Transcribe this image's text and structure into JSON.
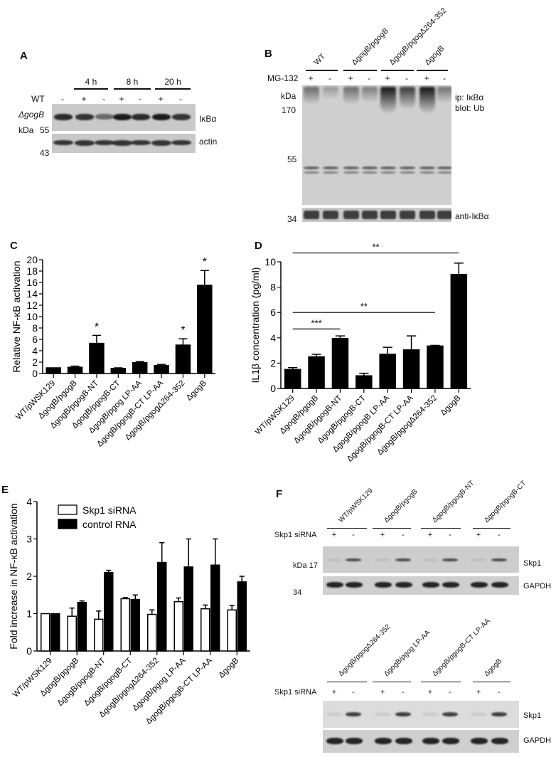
{
  "panels": {
    "A": {
      "letter": "A",
      "time_groups": [
        "4 h",
        "8 h",
        "20 h"
      ],
      "row_labels": {
        "wt": "WT",
        "gogb": "ΔgogB"
      },
      "wt_signs": [
        "-",
        "+",
        "-",
        "+",
        "-",
        "+",
        "-"
      ],
      "gogb_signs": [
        "-",
        "-",
        "+",
        "-",
        "+",
        "-",
        "+"
      ],
      "kda_label": "kDa",
      "markers": [
        "55",
        "43"
      ],
      "blot_labels": [
        "IκBα",
        "actin"
      ]
    },
    "B": {
      "letter": "B",
      "groups": [
        "WT",
        "ΔgogB/pgogB",
        "ΔgogB/pgogΔ264-352",
        "ΔgogB"
      ],
      "treatment_label": "MG-132",
      "signs": [
        "+",
        "-",
        "+",
        "-",
        "+",
        "-",
        "+",
        "-"
      ],
      "kda_label": "kDa",
      "markers": [
        "170",
        "55",
        "34"
      ],
      "blot_labels": [
        "ip: IκBα",
        "blot: Ub",
        "anti-IκBα"
      ]
    },
    "C": {
      "letter": "C"
    },
    "D": {
      "letter": "D"
    },
    "E": {
      "letter": "E"
    },
    "F": {
      "letter": "F",
      "top_groups": [
        "WT/pWSK129",
        "ΔgogB/pgogB",
        "ΔgogB/pgogB-NT",
        "ΔgogB/pgogB-CT"
      ],
      "bottom_groups": [
        "ΔgogB/pgogΔ264-352",
        "ΔgogB/pgog LP-AA",
        "ΔgogB/pgogB-CT LP-AA",
        "ΔgogB"
      ],
      "treatment_label": "Skp1 siRNA",
      "signs": [
        "+",
        "-",
        "+",
        "-",
        "+",
        "-",
        "+",
        "-"
      ],
      "kda_label": "kDa 17",
      "marker": "34",
      "blot_labels": [
        "Skp1",
        "GAPDH"
      ]
    }
  },
  "chart_data": [
    {
      "id": "C",
      "type": "bar",
      "title": "",
      "xlabel": "",
      "ylabel": "Relative NF-κB activation",
      "ylim": [
        0,
        20
      ],
      "yticks": [
        0,
        2,
        4,
        6,
        8,
        10,
        12,
        14,
        16,
        18,
        20
      ],
      "categories": [
        "WT/pWSK129",
        "ΔgogB/pgogB",
        "ΔgogB/pgogB-NT",
        "ΔgogB/pgogB-CT",
        "ΔgogB/pgog LP-AA",
        "ΔgogB/pgogB-CT LP-AA",
        "ΔgogB/pgogΔ264-352",
        "ΔgogB"
      ],
      "values": [
        1.0,
        1.1,
        5.3,
        0.9,
        1.9,
        1.4,
        5.0,
        15.5
      ],
      "errors": [
        0.0,
        0.2,
        1.4,
        0.1,
        0.2,
        0.2,
        1.1,
        2.6
      ],
      "annotations": [
        "",
        "",
        "*",
        "",
        "",
        "",
        "*",
        "*"
      ],
      "grid": false
    },
    {
      "id": "D",
      "type": "bar",
      "title": "",
      "xlabel": "",
      "ylabel": "IL1β concentration (pg/ml)",
      "ylim": [
        0,
        10
      ],
      "yticks": [
        0,
        2,
        4,
        6,
        8,
        10
      ],
      "categories": [
        "WT/pWSK129",
        "ΔgogB/pgogB",
        "ΔgogB/pgogB-NT",
        "ΔgogB/pgogB-CT",
        "ΔgogB/pgogB LP-AA",
        "ΔgogB/pgogB-CT LP-AA",
        "ΔgogB/pgogΔ264-352",
        "ΔgogB"
      ],
      "values": [
        1.5,
        2.5,
        3.95,
        1.0,
        2.7,
        3.05,
        3.35,
        9.0
      ],
      "errors": [
        0.15,
        0.2,
        0.2,
        0.2,
        0.55,
        1.1,
        0.05,
        0.9
      ],
      "significance": [
        {
          "from": 0,
          "to": 7,
          "label": "**",
          "y": 10.7
        },
        {
          "from": 0,
          "to": 6,
          "label": "**",
          "y": 6.0
        },
        {
          "from": 0,
          "to": 2,
          "label": "***",
          "y": 4.7
        }
      ],
      "grid": false
    },
    {
      "id": "E",
      "type": "bar",
      "title": "",
      "xlabel": "",
      "ylabel": "Fold increase in NF-κB activation",
      "ylim": [
        0,
        4
      ],
      "yticks": [
        0,
        1,
        2,
        3,
        4
      ],
      "categories": [
        "WT/pWSK129",
        "ΔgogB/pgogB",
        "ΔgogB/pgogB-NT",
        "ΔgogB/pgogB-CT",
        "ΔgogB/pgogΔ264-352",
        "ΔgogB/pgog LP-AA",
        "ΔgogB/pgogB-CT LP-AA",
        "ΔgogB"
      ],
      "series": [
        {
          "name": "Skp1 siRNA",
          "color": "#ffffff",
          "values": [
            1.0,
            0.93,
            0.85,
            1.4,
            0.98,
            1.32,
            1.13,
            1.1
          ],
          "errors": [
            0.0,
            0.22,
            0.22,
            0.03,
            0.12,
            0.1,
            0.1,
            0.12
          ]
        },
        {
          "name": "control RNA",
          "color": "#000000",
          "values": [
            1.0,
            1.3,
            2.1,
            1.38,
            2.37,
            2.25,
            2.3,
            1.85
          ],
          "errors": [
            0.0,
            0.04,
            0.06,
            0.12,
            0.53,
            0.75,
            0.7,
            0.15
          ]
        }
      ],
      "legend_position": "upper-left",
      "grid": false
    }
  ]
}
